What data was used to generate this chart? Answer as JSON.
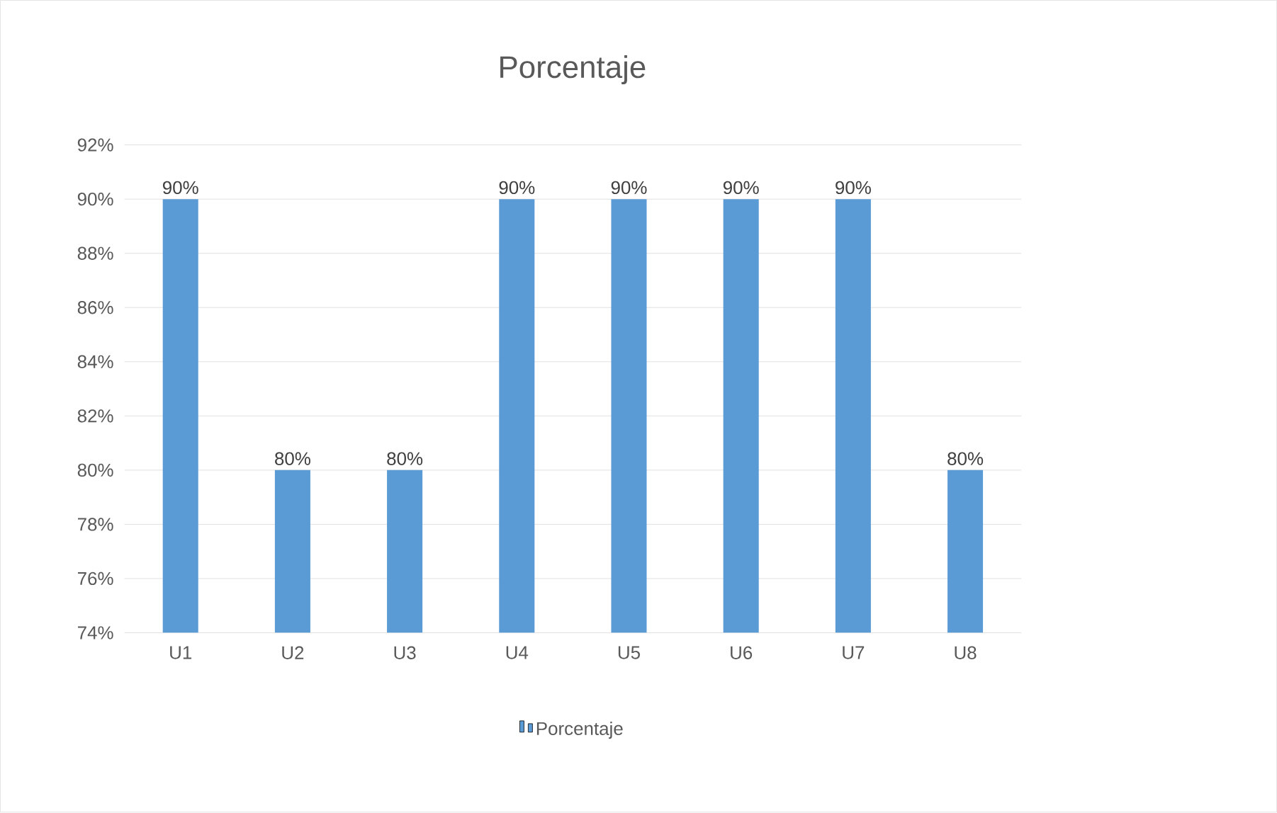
{
  "chart_data": {
    "type": "bar",
    "title": "Porcentaje",
    "categories": [
      "U1",
      "U2",
      "U3",
      "U4",
      "U5",
      "U6",
      "U7",
      "U8"
    ],
    "series": [
      {
        "name": "Porcentaje",
        "color": "#5b9bd5",
        "values": [
          90,
          80,
          80,
          90,
          90,
          90,
          90,
          80
        ],
        "value_labels": [
          "90%",
          "80%",
          "80%",
          "90%",
          "90%",
          "90%",
          "90%",
          "80%"
        ]
      }
    ],
    "ylim": [
      74,
      92
    ],
    "yticks": [
      {
        "value": 74,
        "label": "74%"
      },
      {
        "value": 76,
        "label": "76%"
      },
      {
        "value": 78,
        "label": "78%"
      },
      {
        "value": 80,
        "label": "80%"
      },
      {
        "value": 82,
        "label": "82%"
      },
      {
        "value": 84,
        "label": "84%"
      },
      {
        "value": 86,
        "label": "86%"
      },
      {
        "value": 88,
        "label": "88%"
      },
      {
        "value": 90,
        "label": "90%"
      },
      {
        "value": 92,
        "label": "92%"
      }
    ],
    "grid": "y",
    "legend": "bottom"
  }
}
